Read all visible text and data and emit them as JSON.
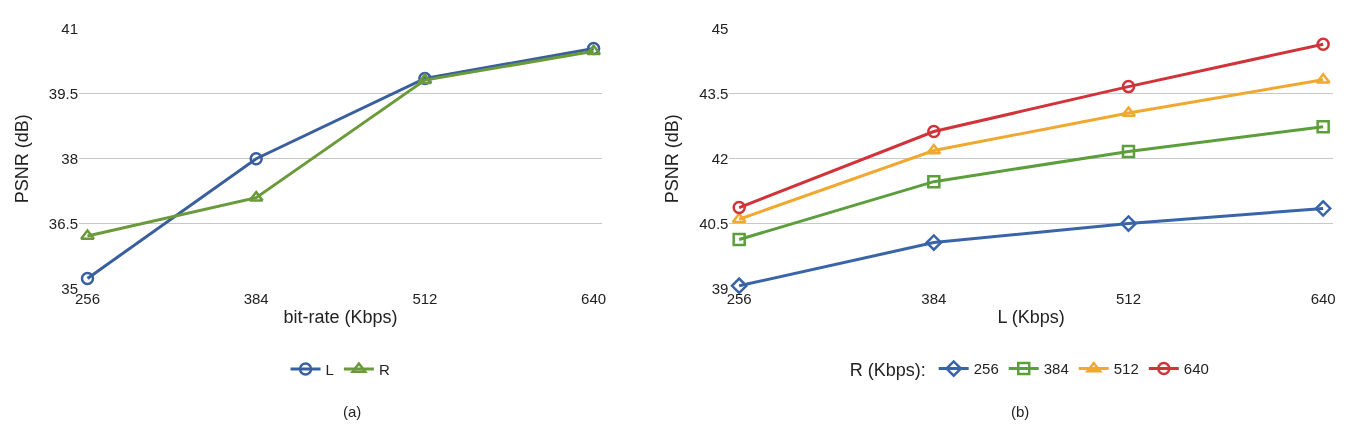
{
  "chart_data": [
    {
      "type": "line",
      "categories": [
        "256",
        "384",
        "512",
        "640"
      ],
      "xlabel": "bit-rate (Kbps)",
      "ylabel": "PSNR (dB)",
      "ylim": [
        35,
        41
      ],
      "yticks": [
        35,
        36.5,
        38,
        39.5,
        41
      ],
      "grid": "y",
      "legend": "bottom",
      "line_style": "solid",
      "annotations": [
        "(a)"
      ],
      "series": [
        {
          "name": "L",
          "color": "#3a5f9e",
          "marker": "circle",
          "values": [
            35.23,
            38.0,
            39.86,
            40.55
          ]
        },
        {
          "name": "R",
          "color": "#6a9a3a",
          "marker": "triangle",
          "values": [
            36.21,
            37.1,
            39.82,
            40.49
          ]
        }
      ]
    },
    {
      "type": "line",
      "categories": [
        "256",
        "384",
        "512",
        "640"
      ],
      "xlabel": "L (Kbps)",
      "ylabel": "PSNR (dB)",
      "ylim": [
        39,
        45
      ],
      "yticks": [
        39,
        40.5,
        42,
        43.5,
        45
      ],
      "grid": "y",
      "legend": "bottom",
      "legend_title": "R (Kbps):",
      "line_style": "solid",
      "annotations": [
        "(b)"
      ],
      "series": [
        {
          "name": "256",
          "color": "#3a64a8",
          "marker": "diamond",
          "values": [
            39.06,
            40.06,
            40.5,
            40.85
          ]
        },
        {
          "name": "384",
          "color": "#5c9e3c",
          "marker": "square",
          "values": [
            40.13,
            41.47,
            42.17,
            42.74
          ]
        },
        {
          "name": "512",
          "color": "#f0a830",
          "marker": "triangle",
          "values": [
            40.6,
            42.19,
            43.06,
            43.83
          ]
        },
        {
          "name": "640",
          "color": "#d0343a",
          "marker": "circle",
          "values": [
            40.87,
            42.63,
            43.67,
            44.65
          ]
        }
      ]
    }
  ]
}
